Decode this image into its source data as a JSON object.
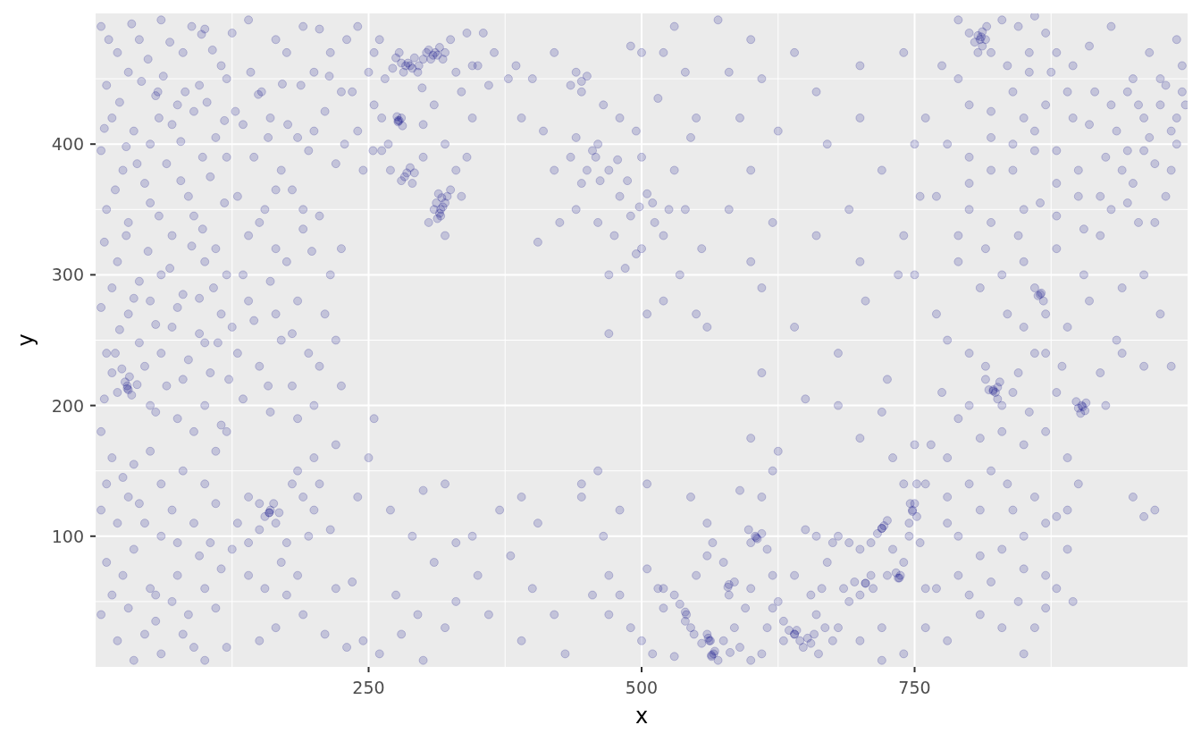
{
  "chart_data": {
    "type": "scatter",
    "xlabel": "x",
    "ylabel": "y",
    "xlim": [
      0,
      1000
    ],
    "ylim": [
      0,
      500
    ],
    "xticks": [
      250,
      500,
      750
    ],
    "yticks": [
      100,
      200,
      300,
      400
    ],
    "grid": true,
    "marker": "circle",
    "series": [
      {
        "color": "#000080",
        "x": [
          5,
          20,
          40,
          60,
          80,
          97,
          100,
          115,
          10,
          30,
          55,
          57,
          75,
          95,
          120,
          15,
          35,
          50,
          70,
          90,
          110,
          5,
          25,
          45,
          65,
          85,
          105,
          120,
          10,
          30,
          50,
          70,
          90,
          110,
          20,
          40,
          60,
          80,
          100,
          120,
          5,
          30,
          50,
          70,
          95,
          115,
          10,
          18,
          29,
          27,
          31,
          45,
          65,
          85,
          105,
          122,
          8,
          50,
          75,
          100,
          115,
          140,
          165,
          190,
          215,
          149,
          152,
          171,
          200,
          225,
          135,
          160,
          185,
          210,
          145,
          170,
          195,
          220,
          130,
          155,
          180,
          205,
          140,
          165,
          190,
          215,
          135,
          160,
          185,
          210,
          145,
          170,
          195,
          220,
          150,
          180,
          200,
          135,
          160,
          240,
          255,
          265,
          275,
          280,
          284,
          286,
          290,
          295,
          300,
          305,
          311,
          313,
          318,
          325,
          340,
          350,
          360,
          335,
          299,
          310,
          277,
          278,
          280,
          254,
          262,
          240,
          283,
          285,
          290,
          300,
          320,
          330,
          270,
          315,
          316,
          317,
          320,
          310,
          305,
          325,
          320,
          345,
          365,
          245,
          235,
          255,
          385,
          400,
          420,
          440,
          435,
          445,
          465,
          490,
          500,
          520,
          530,
          390,
          410,
          440,
          460,
          480,
          495,
          515,
          540,
          550,
          420,
          435,
          445,
          450,
          470,
          480,
          500,
          510,
          530,
          545,
          425,
          440,
          460,
          475,
          490,
          500,
          495,
          520,
          535,
          555,
          470,
          485,
          470,
          520,
          505,
          550,
          405,
          378,
          540,
          570,
          600,
          640,
          580,
          610,
          660,
          700,
          740,
          590,
          625,
          670,
          700,
          720,
          750,
          600,
          580,
          620,
          660,
          700,
          740,
          750,
          600,
          610,
          640,
          560,
          680,
          610,
          650,
          705,
          725,
          735,
          690,
          755,
          390,
          405,
          380,
          400,
          420,
          390,
          430,
          445,
          445,
          460,
          465,
          480,
          470,
          480,
          455,
          470,
          490,
          500,
          510,
          520,
          515,
          505,
          530,
          540,
          541,
          545,
          550,
          560,
          565,
          575,
          579,
          580,
          561,
          563,
          564,
          566,
          581,
          585,
          595,
          600,
          604,
          606,
          615,
          620,
          625,
          630,
          640,
          642,
          645,
          652,
          655,
          660,
          665,
          670,
          680,
          690,
          700,
          705,
          710,
          720,
          722,
          730,
          735,
          737,
          745,
          748,
          750,
          752,
          740,
          690,
          680,
          700,
          720,
          740,
          760,
          600,
          610,
          620,
          560,
          545,
          590,
          505,
          600,
          625,
          680,
          700,
          720,
          730,
          750,
          520,
          530,
          760,
          720,
          5,
          15,
          25,
          35,
          50,
          60,
          80,
          100,
          110,
          120,
          5,
          20,
          40,
          60,
          75,
          90,
          110,
          10,
          25,
          35,
          50,
          55,
          70,
          85,
          100,
          115,
          5,
          20,
          35,
          45,
          60,
          80,
          100,
          120,
          130,
          140,
          150,
          159,
          160,
          165,
          175,
          180,
          185,
          190,
          200,
          195,
          140,
          155,
          175,
          190,
          210,
          220,
          165,
          150,
          230,
          245,
          260,
          280,
          300,
          320,
          330,
          310,
          290,
          270,
          250,
          255,
          240,
          300,
          320,
          330,
          350,
          360,
          370,
          345,
          275,
          295,
          220,
          215,
          235,
          790,
          800,
          808,
          810,
          812,
          815,
          820,
          830,
          845,
          860,
          870,
          880,
          895,
          910,
          930,
          950,
          965,
          990,
          775,
          790,
          800,
          820,
          840,
          850,
          870,
          890,
          910,
          930,
          945,
          960,
          975,
          995,
          780,
          800,
          820,
          840,
          860,
          880,
          900,
          925,
          950,
          970,
          990,
          760,
          770,
          800,
          820,
          845,
          865,
          880,
          905,
          930,
          955,
          980,
          905,
          790,
          810,
          830,
          850,
          863,
          866,
          870,
          890,
          910,
          940,
          975,
          770,
          780,
          800,
          815,
          822,
          824,
          826,
          830,
          845,
          860,
          880,
          900,
          903,
          906,
          920,
          940,
          960,
          790,
          810,
          830,
          850,
          870,
          890,
          775,
          765,
          780,
          800,
          820,
          840,
          860,
          880,
          900,
          790,
          810,
          830,
          850,
          870,
          890,
          770,
          790,
          810,
          830,
          850,
          870,
          895,
          780,
          760,
          950,
          970,
          925,
          985,
          960,
          780,
          985,
          965,
          945,
          995,
          980,
          960,
          935,
          920,
          880,
          850,
          835,
          855,
          29,
          30,
          288,
          309,
          316,
          822,
          904,
          811,
          748,
          564,
          562,
          605,
          640,
          720,
          736,
          705,
          277,
          159,
          865,
          12,
          33,
          48,
          68,
          88,
          107,
          125,
          22,
          42,
          62,
          82,
          102,
          128,
          8,
          28,
          58,
          78,
          98,
          118,
          18,
          38,
          58,
          78,
          98,
          118,
          8,
          28,
          48,
          68,
          88,
          108,
          15,
          35,
          55,
          75,
          95,
          112,
          22,
          40,
          60,
          80,
          100,
          15,
          20,
          33,
          24,
          38,
          55,
          90,
          130,
          175,
          205,
          230,
          188,
          214,
          142,
          158,
          176,
          200,
          228,
          165,
          190,
          150,
          175,
          198,
          225,
          140,
          165,
          180,
          205,
          225,
          125,
          158,
          185,
          272,
          278,
          282,
          292,
          296,
          303,
          307,
          315,
          320,
          281,
          276,
          288,
          280,
          292,
          313,
          318,
          314,
          322,
          312,
          250,
          260,
          330,
          345,
          355,
          268,
          300,
          335,
          340,
          262,
          555,
          560,
          567,
          570,
          575,
          590,
          610,
          615,
          630,
          635,
          648,
          658,
          662,
          668,
          675,
          685,
          695,
          700,
          712,
          725,
          733,
          740,
          745,
          752,
          746,
          755,
          716,
          725,
          710,
          650,
          660,
          675,
          600,
          610,
          598,
          580,
          585,
          540,
          535,
          548,
          620,
          640,
          655,
          10,
          30,
          45,
          70,
          95,
          105,
          125,
          15,
          30,
          55,
          75,
          90,
          110,
          140,
          150,
          163,
          168,
          155,
          170,
          185,
          200,
          205,
          805,
          812,
          816,
          808,
          818,
          826,
          828,
          815,
          898,
          907,
          902,
          860,
          868,
          855,
          875,
          895,
          915,
          935,
          955,
          975,
          990,
          998,
          940,
          960,
          985,
          920,
          945,
          970,
          900,
          880,
          860,
          840,
          820,
          800,
          790,
          815,
          835,
          850,
          870,
          885,
          840,
          855,
          800,
          780,
          810,
          835,
          850,
          870,
          890,
          800,
          820,
          845,
          860,
          880,
          445,
          450,
          458,
          455,
          462,
          478,
          487,
          498,
          505,
          512,
          525
        ],
        "values": [
          490,
          470,
          480,
          495,
          470,
          484,
          488,
          460,
          445,
          455,
          437,
          440,
          430,
          445,
          450,
          420,
          410,
          400,
          415,
          425,
          405,
          395,
          380,
          370,
          385,
          360,
          375,
          390,
          350,
          340,
          355,
          330,
          345,
          320,
          310,
          295,
          300,
          285,
          310,
          300,
          275,
          270,
          280,
          260,
          255,
          270,
          240,
          240,
          213,
          218,
          222,
          230,
          215,
          235,
          225,
          220,
          205,
          200,
          190,
          200,
          185,
          495,
          480,
          490,
          470,
          438,
          440,
          446,
          455,
          440,
          415,
          420,
          405,
          425,
          390,
          380,
          395,
          385,
          360,
          350,
          365,
          345,
          330,
          320,
          335,
          300,
          300,
          295,
          280,
          270,
          265,
          250,
          240,
          250,
          230,
          215,
          200,
          205,
          195,
          490,
          470,
          450,
          466,
          462,
          460,
          462,
          458,
          455,
          465,
          472,
          470,
          468,
          465,
          480,
          485,
          460,
          445,
          440,
          443,
          430,
          417,
          418,
          420,
          395,
          395,
          410,
          375,
          378,
          370,
          390,
          400,
          380,
          380,
          347,
          345,
          359,
          355,
          350,
          340,
          365,
          330,
          420,
          470,
          380,
          440,
          430,
          460,
          450,
          470,
          455,
          445,
          440,
          430,
          475,
          470,
          470,
          490,
          420,
          410,
          405,
          400,
          420,
          410,
          435,
          455,
          420,
          380,
          390,
          370,
          380,
          380,
          360,
          390,
          355,
          380,
          405,
          340,
          350,
          340,
          330,
          345,
          320,
          316,
          330,
          300,
          320,
          300,
          305,
          255,
          280,
          270,
          270,
          325,
          450,
          350,
          495,
          480,
          470,
          455,
          450,
          440,
          460,
          470,
          420,
          410,
          400,
          420,
          380,
          400,
          380,
          350,
          340,
          330,
          310,
          330,
          300,
          310,
          290,
          260,
          260,
          240,
          225,
          205,
          280,
          220,
          300,
          350,
          360,
          130,
          110,
          85,
          60,
          40,
          20,
          10,
          130,
          140,
          150,
          100,
          120,
          70,
          55,
          55,
          40,
          30,
          20,
          10,
          45,
          60,
          75,
          55,
          42,
          40,
          30,
          70,
          85,
          95,
          80,
          61,
          63,
          22,
          20,
          8,
          10,
          11,
          30,
          45,
          60,
          100,
          98,
          90,
          70,
          50,
          35,
          25,
          28,
          20,
          22,
          18,
          40,
          60,
          80,
          100,
          95,
          90,
          64,
          70,
          106,
          108,
          90,
          68,
          70,
          110,
          119,
          125,
          140,
          140,
          50,
          30,
          20,
          30,
          10,
          30,
          5,
          130,
          150,
          110,
          130,
          135,
          140,
          175,
          165,
          200,
          175,
          195,
          160,
          170,
          60,
          8,
          60,
          5,
          180,
          160,
          145,
          155,
          165,
          140,
          150,
          140,
          165,
          180,
          120,
          110,
          125,
          100,
          95,
          110,
          125,
          80,
          70,
          90,
          60,
          55,
          50,
          40,
          60,
          75,
          40,
          20,
          5,
          25,
          10,
          25,
          5,
          15,
          110,
          130,
          125,
          118,
          120,
          110,
          95,
          140,
          150,
          130,
          160,
          100,
          70,
          60,
          55,
          40,
          25,
          60,
          30,
          20,
          15,
          20,
          10,
          25,
          5,
          30,
          50,
          80,
          100,
          120,
          160,
          190,
          130,
          135,
          140,
          95,
          70,
          40,
          120,
          100,
          55,
          40,
          170,
          105,
          65,
          495,
          485,
          483,
          480,
          486,
          480,
          470,
          495,
          490,
          498,
          485,
          470,
          460,
          475,
          490,
          450,
          470,
          480,
          460,
          450,
          430,
          425,
          440,
          420,
          430,
          440,
          415,
          430,
          440,
          420,
          430,
          440,
          400,
          390,
          405,
          380,
          395,
          370,
          380,
          390,
          370,
          385,
          400,
          420,
          360,
          350,
          340,
          330,
          355,
          320,
          335,
          350,
          340,
          360,
          300,
          310,
          290,
          300,
          310,
          284,
          286,
          270,
          260,
          280,
          290,
          270,
          270,
          250,
          240,
          230,
          212,
          210,
          214,
          200,
          225,
          240,
          210,
          198,
          200,
          196,
          225,
          240,
          230,
          190,
          175,
          180,
          170,
          180,
          160,
          210,
          170,
          130,
          140,
          150,
          120,
          130,
          115,
          140,
          100,
          85,
          90,
          75,
          70,
          90,
          60,
          70,
          40,
          30,
          10,
          45,
          50,
          20,
          140,
          130,
          120,
          200,
          230,
          115,
          110,
          410,
          405,
          395,
          460,
          445,
          300,
          250,
          330,
          345,
          350,
          460,
          455,
          215,
          212,
          460,
          468,
          350,
          211,
          199,
          482,
          120,
          9,
          20,
          99,
          25,
          106,
          68,
          64,
          418,
          118,
          285,
          480,
          492,
          465,
          478,
          490,
          472,
          485,
          432,
          448,
          452,
          440,
          432,
          425,
          412,
          398,
          420,
          402,
          390,
          418,
          365,
          385,
          345,
          372,
          335,
          355,
          325,
          330,
          318,
          305,
          322,
          290,
          290,
          282,
          262,
          275,
          282,
          248,
          258,
          248,
          240,
          220,
          248,
          225,
          210,
          208,
          228,
          216,
          195,
          180,
          240,
          470,
          488,
          480,
          445,
          452,
          455,
          405,
          415,
          410,
          400,
          365,
          350,
          340,
          310,
          318,
          320,
          280,
          270,
          255,
          230,
          215,
          260,
          215,
          190,
          458,
          470,
          455,
          466,
          460,
          470,
          465,
          474,
          470,
          414,
          421,
          382,
          372,
          378,
          343,
          352,
          362,
          360,
          355,
          455,
          480,
          455,
          460,
          485,
          400,
          415,
          360,
          390,
          420,
          18,
          25,
          12,
          5,
          20,
          15,
          10,
          30,
          20,
          28,
          15,
          25,
          10,
          30,
          20,
          60,
          65,
          55,
          60,
          70,
          72,
          80,
          100,
          115,
          125,
          95,
          102,
          112,
          95,
          105,
          100,
          95,
          95,
          102,
          105,
          55,
          65,
          35,
          48,
          25,
          45,
          70,
          55,
          140,
          130,
          110,
          120,
          85,
          95,
          90,
          55,
          45,
          35,
          70,
          15,
          45,
          95,
          105,
          125,
          118,
          115,
          80,
          70,
          120,
          140,
          478,
          475,
          490,
          470,
          212,
          205,
          218,
          220,
          203,
          202,
          194,
          290,
          280,
          470,
          455,
          420,
          440,
          410,
          430,
          450,
          420,
          430,
          380,
          395,
          380,
          360,
          355,
          340,
          360,
          395,
          410,
          400,
          380,
          370,
          330,
          320,
          270,
          260,
          240,
          230,
          210,
          195,
          200,
          160,
          120,
          140,
          100,
          110,
          120,
          55,
          65,
          50,
          30,
          60,
          448,
          452,
          390,
          395,
          372,
          388,
          372,
          352,
          362,
          340,
          350
        ]
      }
    ]
  }
}
